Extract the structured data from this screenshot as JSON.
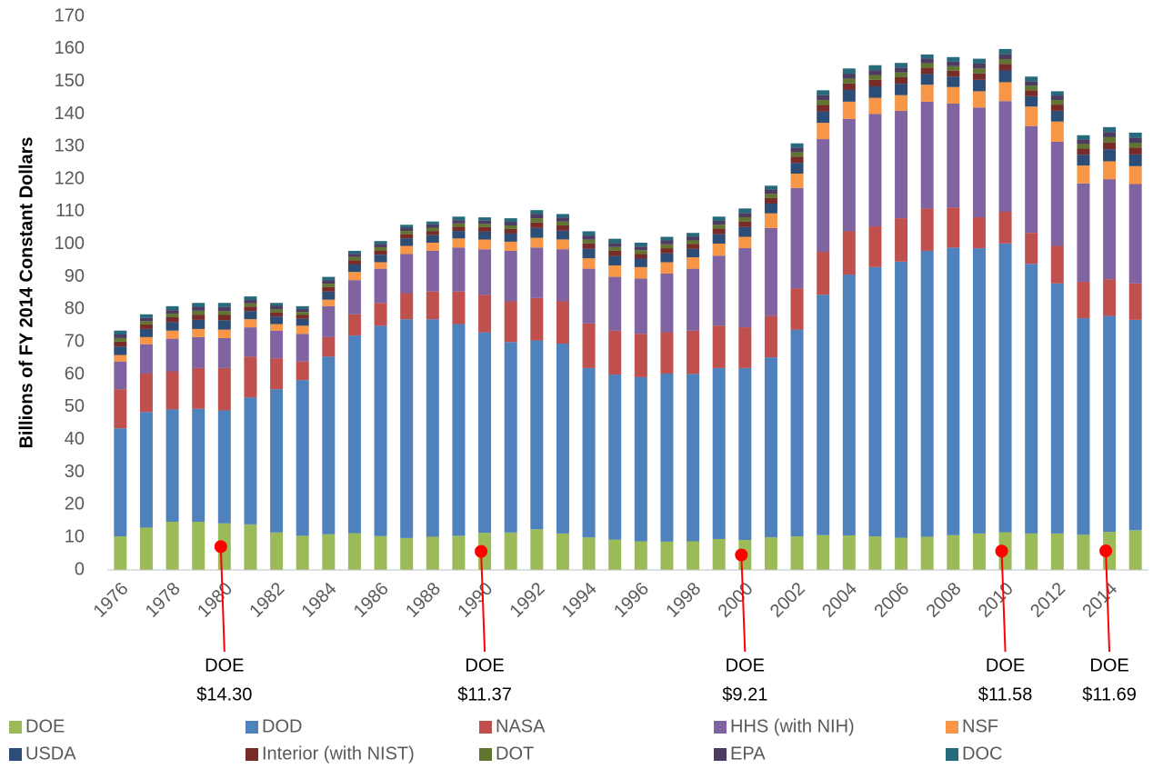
{
  "chart_data": {
    "type": "stacked_bar",
    "y_axis_label": "Billions of FY 2014 Constant Dollars",
    "categories": [
      "1976",
      null,
      "1978",
      null,
      "1980",
      null,
      "1982",
      null,
      "1984",
      null,
      "1986",
      null,
      "1988",
      null,
      "1990",
      null,
      "1992",
      null,
      "1994",
      null,
      "1996",
      null,
      "1998",
      null,
      "2000",
      null,
      "2002",
      null,
      "2004",
      null,
      "2006",
      null,
      "2008",
      null,
      "2010",
      null,
      "2012",
      null,
      "2014",
      null
    ],
    "ylim": [
      0,
      170
    ],
    "yticks": [
      0,
      10,
      20,
      30,
      40,
      50,
      60,
      70,
      80,
      90,
      100,
      110,
      120,
      130,
      140,
      150,
      160,
      170
    ],
    "grid": false,
    "legend": "bottom",
    "series": [
      {
        "name": "DOE",
        "color": "#9bbb59",
        "values": [
          10.3,
          13.0,
          14.8,
          14.8,
          14.3,
          14.0,
          11.5,
          10.5,
          11.0,
          11.3,
          10.4,
          9.8,
          10.2,
          10.5,
          11.37,
          11.5,
          12.5,
          11.2,
          10.0,
          9.3,
          8.8,
          8.7,
          8.8,
          9.5,
          9.21,
          10.0,
          10.3,
          10.7,
          10.6,
          10.3,
          9.9,
          10.2,
          10.7,
          11.2,
          11.58,
          11.2,
          11.2,
          10.8,
          11.69,
          12.2
        ]
      },
      {
        "name": "DOD",
        "color": "#4f81bd",
        "values": [
          33.2,
          35.5,
          34.5,
          34.7,
          34.7,
          39.0,
          44.0,
          47.8,
          54.5,
          60.7,
          64.6,
          67.2,
          66.8,
          65.0,
          61.6,
          58.5,
          58.0,
          58.3,
          52.0,
          50.7,
          50.4,
          51.6,
          51.4,
          52.5,
          52.8,
          55.3,
          63.5,
          73.8,
          80.1,
          82.7,
          84.8,
          87.8,
          88.3,
          87.6,
          88.7,
          82.8,
          76.8,
          66.5,
          66.3,
          64.6
        ]
      },
      {
        "name": "NASA",
        "color": "#c0504d",
        "values": [
          12.0,
          11.8,
          11.7,
          12.5,
          13.0,
          12.5,
          9.5,
          5.7,
          6.0,
          6.5,
          7.0,
          8.0,
          8.5,
          10.0,
          11.5,
          12.5,
          13.0,
          13.0,
          13.7,
          13.5,
          13.3,
          12.7,
          13.3,
          13.0,
          12.5,
          12.7,
          12.7,
          13.2,
          13.3,
          12.5,
          13.3,
          13.0,
          12.3,
          9.5,
          9.7,
          9.5,
          11.5,
          11.2,
          11.3,
          11.2
        ]
      },
      {
        "name": "HHS (with NIH)",
        "color": "#8064a2",
        "values": [
          8.5,
          9.0,
          10.0,
          9.5,
          9.2,
          9.0,
          8.5,
          8.5,
          9.5,
          10.5,
          10.5,
          12.0,
          12.5,
          13.5,
          14.0,
          15.5,
          15.5,
          16.0,
          16.8,
          16.5,
          17.0,
          18.0,
          19.0,
          21.5,
          24.3,
          27.0,
          30.8,
          34.6,
          34.5,
          34.5,
          33.0,
          32.8,
          31.9,
          33.7,
          34.0,
          32.8,
          32.0,
          30.2,
          30.7,
          30.5
        ]
      },
      {
        "name": "NSF",
        "color": "#f79646",
        "values": [
          2.0,
          2.2,
          2.5,
          2.5,
          2.6,
          2.5,
          2.0,
          2.5,
          2.0,
          2.5,
          2.0,
          2.5,
          2.5,
          2.8,
          3.0,
          2.8,
          3.0,
          3.0,
          3.2,
          3.5,
          3.5,
          3.5,
          3.5,
          3.7,
          3.5,
          4.5,
          4.4,
          5.0,
          5.3,
          5.0,
          4.8,
          5.2,
          5.1,
          5.0,
          5.8,
          6.0,
          6.2,
          5.5,
          5.5,
          5.5
        ]
      },
      {
        "name": "USDA",
        "color": "#2c4d75",
        "values": [
          2.6,
          2.5,
          2.6,
          2.8,
          2.9,
          2.5,
          2.3,
          2.1,
          2.5,
          2.3,
          2.3,
          2.3,
          2.3,
          2.3,
          2.4,
          2.5,
          3.0,
          2.7,
          2.9,
          2.9,
          2.6,
          2.7,
          2.6,
          2.9,
          3.0,
          3.0,
          3.3,
          3.5,
          3.6,
          3.5,
          3.5,
          3.3,
          3.2,
          3.5,
          3.6,
          3.2,
          3.3,
          3.3,
          3.7,
          3.6
        ]
      },
      {
        "name": "Interior (with NIST)",
        "color": "#772c2a",
        "values": [
          1.5,
          1.4,
          1.5,
          1.6,
          1.6,
          1.4,
          1.3,
          1.2,
          1.4,
          1.3,
          1.3,
          1.3,
          1.3,
          1.3,
          1.4,
          1.4,
          1.7,
          1.6,
          1.7,
          1.6,
          1.5,
          1.6,
          1.5,
          1.7,
          1.7,
          1.7,
          1.9,
          2.0,
          2.0,
          2.0,
          2.0,
          1.9,
          1.8,
          2.0,
          2.0,
          1.8,
          1.9,
          1.9,
          2.1,
          2.1
        ]
      },
      {
        "name": "DOT",
        "color": "#5f7530",
        "values": [
          1.1,
          1.0,
          1.1,
          1.2,
          1.2,
          1.0,
          1.0,
          0.9,
          1.0,
          1.0,
          1.0,
          1.0,
          1.0,
          1.0,
          1.0,
          1.1,
          1.3,
          1.2,
          1.2,
          1.2,
          1.1,
          1.2,
          1.1,
          1.2,
          1.3,
          1.3,
          1.4,
          1.5,
          1.5,
          1.5,
          1.5,
          1.4,
          1.4,
          1.5,
          1.5,
          1.4,
          1.4,
          1.4,
          1.6,
          1.5
        ]
      },
      {
        "name": "EPA",
        "color": "#4d3b62",
        "values": [
          1.1,
          1.0,
          1.1,
          1.2,
          1.2,
          1.0,
          1.0,
          0.9,
          1.0,
          1.0,
          1.0,
          1.0,
          1.0,
          1.0,
          1.0,
          1.1,
          1.3,
          1.2,
          1.2,
          1.2,
          1.1,
          1.2,
          1.1,
          1.2,
          1.3,
          1.3,
          1.4,
          1.5,
          1.5,
          1.5,
          1.5,
          1.4,
          1.4,
          1.5,
          1.5,
          1.4,
          1.4,
          1.4,
          1.6,
          1.5
        ]
      },
      {
        "name": "DOC",
        "color": "#276a7c",
        "values": [
          1.2,
          1.1,
          1.2,
          1.2,
          1.3,
          1.1,
          0.9,
          0.9,
          1.1,
          0.9,
          0.9,
          0.9,
          0.9,
          1.1,
          1.0,
          1.1,
          1.2,
          1.1,
          1.3,
          1.3,
          1.2,
          1.1,
          1.2,
          1.3,
          1.4,
          1.2,
          1.3,
          1.5,
          1.6,
          1.5,
          1.4,
          1.3,
          1.4,
          1.5,
          1.6,
          1.4,
          1.3,
          1.3,
          1.5,
          1.6
        ]
      }
    ],
    "annotations": [
      {
        "x": "1980",
        "text": "DOE",
        "label": "$14.30",
        "value": 14.3
      },
      {
        "x": "1990",
        "text": "DOE",
        "label": "$11.37",
        "value": 11.37
      },
      {
        "x": "2000",
        "text": "DOE",
        "label": "$9.21",
        "value": 9.21
      },
      {
        "x": "2010",
        "text": "DOE",
        "label": "$11.58",
        "value": 11.58
      },
      {
        "x": "2014",
        "text": "DOE",
        "label": "$11.69",
        "value": 11.69
      }
    ],
    "annotation_color": "#ff0000"
  }
}
